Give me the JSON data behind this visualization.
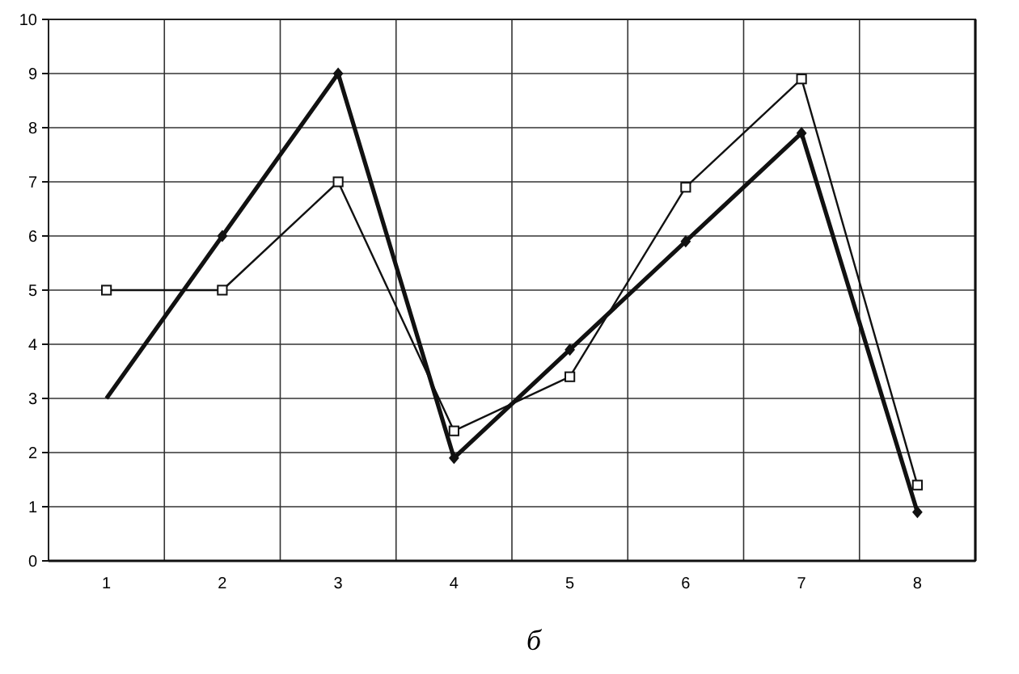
{
  "chart_data": {
    "type": "line",
    "categories": [
      "1",
      "2",
      "3",
      "4",
      "5",
      "6",
      "7",
      "8"
    ],
    "series": [
      {
        "color": "#111111",
        "marker": "diamond",
        "values": [
          3,
          6,
          9,
          1.9,
          3.9,
          5.9,
          7.9,
          0.9
        ]
      },
      {
        "color": "#111111",
        "marker": "square",
        "values": [
          5,
          5,
          7,
          2.4,
          3.4,
          6.9,
          8.9,
          1.4
        ]
      }
    ],
    "ylim": [
      0,
      10
    ],
    "yticks": [
      0,
      1,
      2,
      3,
      4,
      5,
      6,
      7,
      8,
      9,
      10
    ],
    "grid": true,
    "line_style": "solid",
    "annotations": [
      "б"
    ]
  }
}
